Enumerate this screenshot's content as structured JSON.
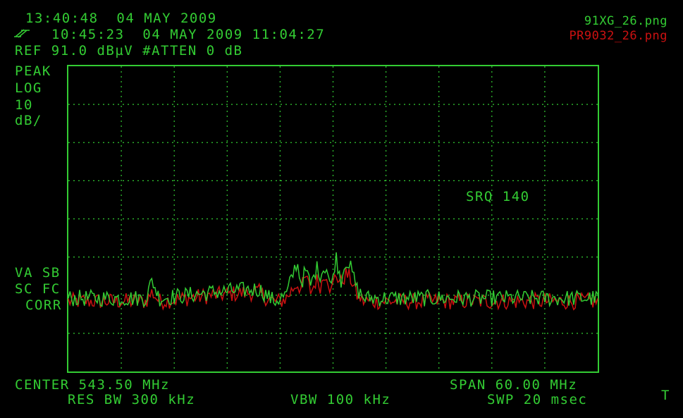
{
  "header": {
    "time1": "13:40:48  04 MAY 2009",
    "time2": "10:45:23  04 MAY 2009 11:04:27",
    "ref_line": "REF 91.0 dBµV #ATTEN 0 dB"
  },
  "files": {
    "green": "91XG_26.png",
    "red": "PR9032_26.png"
  },
  "left_labels": {
    "detector": "PEAK",
    "scale": "LOG",
    "per_div": "10",
    "unit": "dB/",
    "va_sb": "VA SB",
    "sc_fc": "SC FC",
    "corr": "CORR"
  },
  "srq": "SRQ 140",
  "footer": {
    "center": "CENTER 543.50 MHz",
    "span": "SPAN 60.00 MHz",
    "res_bw": "RES BW 300 kHz",
    "vbw": "VBW 100 kHz",
    "swp": "SWP 20 msec",
    "marker": "T"
  },
  "colors": {
    "green": "#33cc33",
    "red": "#cc1111",
    "grid": "#33cc33",
    "background": "#000000"
  },
  "chart_data": {
    "type": "line",
    "xlabel": "",
    "ylabel": "",
    "xlim": [
      513.5,
      573.5
    ],
    "ylim": [
      -9.0,
      91.0
    ],
    "grid": true,
    "x": [
      513.5,
      520,
      522.3,
      523,
      523.8,
      530,
      535.1,
      536,
      536.8,
      537.5,
      538.2,
      539.4,
      539.9,
      540.4,
      541.0,
      541.6,
      542.1,
      542.7,
      543.3,
      543.8,
      544.4,
      545.0,
      545.6,
      546.2,
      547,
      550,
      560,
      573.5
    ],
    "series": [
      {
        "name": "91XG_26.png",
        "color": "green",
        "values": [
          15,
          15,
          15,
          21,
          15,
          17,
          18,
          16,
          14,
          15,
          16,
          27,
          20,
          24,
          19,
          25,
          23,
          26,
          18,
          29,
          21,
          28,
          24,
          18,
          15,
          15,
          15,
          15
        ]
      },
      {
        "name": "PR9032_26.png",
        "color": "red",
        "values": [
          14,
          14,
          14,
          17,
          14,
          16,
          17,
          15,
          14,
          14,
          15,
          20,
          18,
          22,
          17,
          21,
          19,
          24,
          17,
          23,
          20,
          23,
          21,
          16,
          14,
          14,
          14,
          14
        ]
      }
    ]
  }
}
